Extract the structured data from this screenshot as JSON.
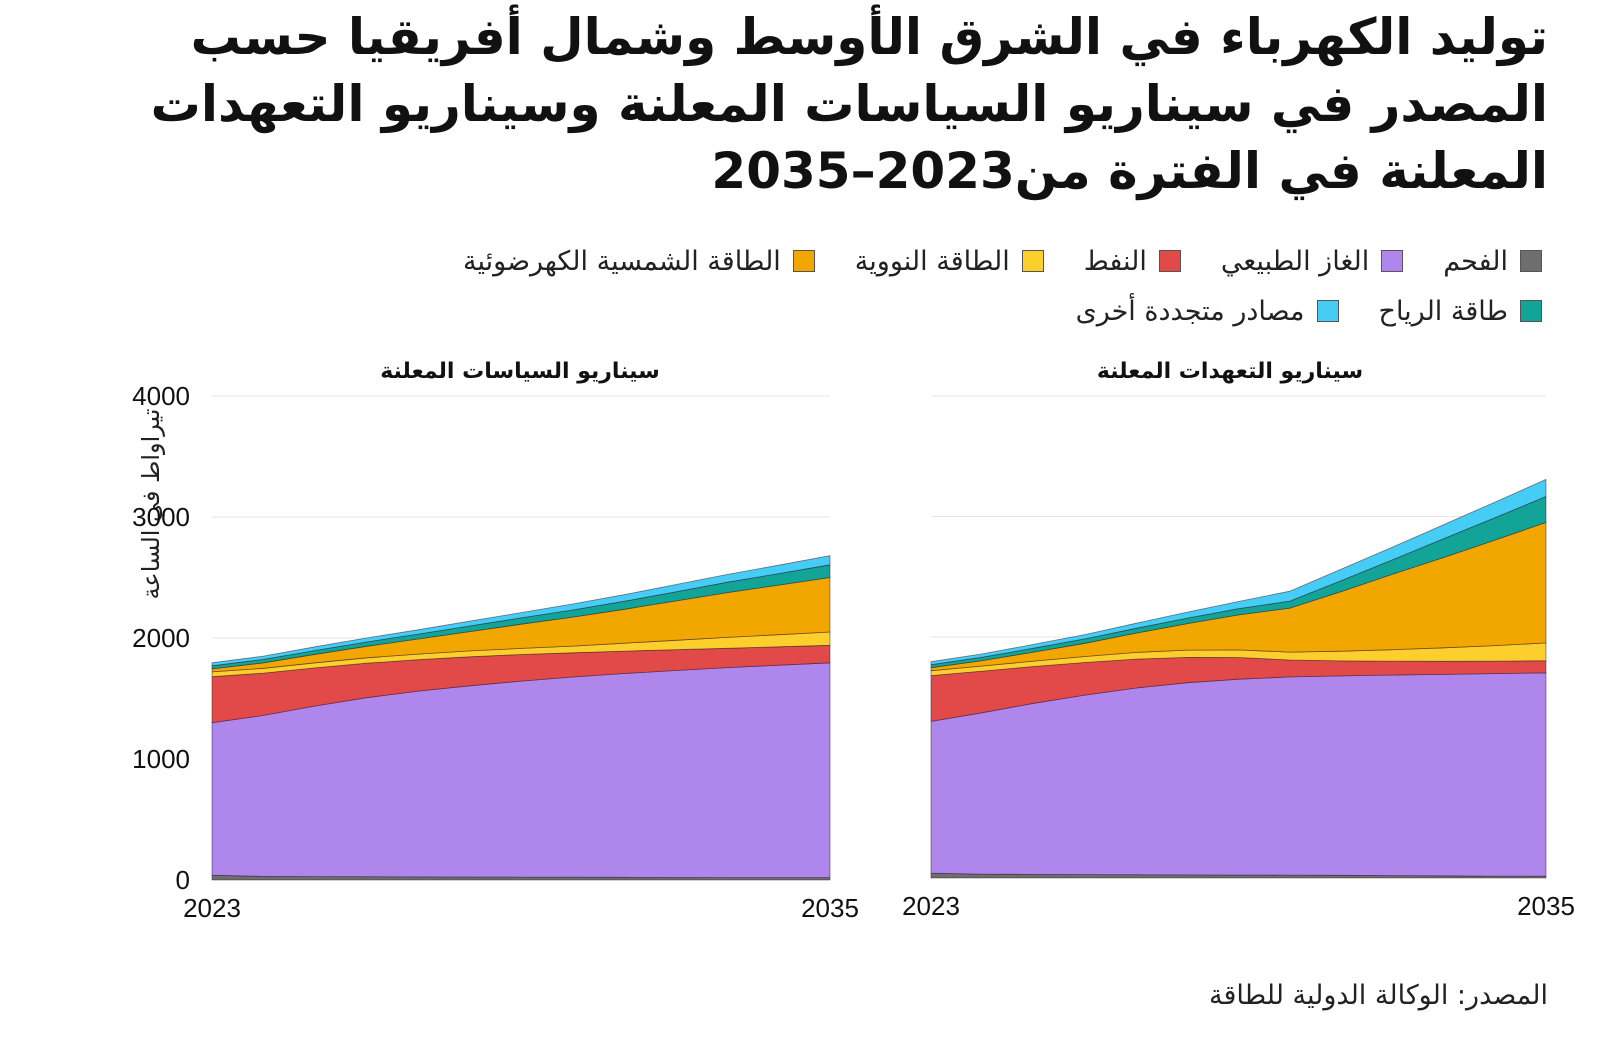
{
  "title": "توليد الكهرباء في الشرق الأوسط وشمال أفريقيا حسب المصدر في سيناريو السياسات المعلنة وسيناريو التعهدات المعلنة في الفترة من2023–2035",
  "legend": [
    {
      "key": "coal",
      "label": "الفحم",
      "color": "#6e6e6e"
    },
    {
      "key": "gas",
      "label": "الغاز الطبيعي",
      "color": "#ae86ec"
    },
    {
      "key": "oil",
      "label": "النفط",
      "color": "#e24a4a"
    },
    {
      "key": "nuclear",
      "label": "الطاقة النووية",
      "color": "#fccf2c"
    },
    {
      "key": "solar",
      "label": "الطاقة الشمسية الكهرضوئية",
      "color": "#f2a600"
    },
    {
      "key": "wind",
      "label": "طاقة الرياح",
      "color": "#12a597"
    },
    {
      "key": "other",
      "label": "مصادر متجددة أخرى",
      "color": "#45cdf5"
    }
  ],
  "source": "المصدر: الوكالة الدولية للطاقة",
  "chart_data": [
    {
      "type": "area",
      "stacked": true,
      "title": "سيناريو السياسات المعلنة",
      "ylabel": "تيراواط في الساعة",
      "xlabel": "",
      "x": [
        2023,
        2024,
        2025,
        2026,
        2027,
        2028,
        2029,
        2030,
        2031,
        2032,
        2033,
        2034,
        2035
      ],
      "xtick_labels": [
        "2023",
        "2035"
      ],
      "ylim": [
        0,
        4000
      ],
      "yticks": [
        0,
        1000,
        2000,
        3000,
        4000
      ],
      "ytick_labels": [
        "0",
        "1000",
        "2000",
        "3000",
        "4000"
      ],
      "grid": true,
      "legend_position": "top",
      "series": [
        {
          "name": "الفحم",
          "key": "coal",
          "values": [
            40,
            30,
            28,
            27,
            26,
            25,
            24,
            23,
            22,
            21,
            20,
            20,
            20
          ]
        },
        {
          "name": "الغاز الطبيعي",
          "key": "gas",
          "values": [
            1260,
            1330,
            1410,
            1480,
            1535,
            1580,
            1620,
            1655,
            1685,
            1710,
            1735,
            1755,
            1775
          ]
        },
        {
          "name": "النفط",
          "key": "oil",
          "values": [
            380,
            350,
            315,
            285,
            260,
            240,
            220,
            200,
            185,
            172,
            160,
            152,
            145
          ]
        },
        {
          "name": "الطاقة النووية",
          "key": "nuclear",
          "values": [
            40,
            40,
            42,
            44,
            46,
            48,
            50,
            55,
            65,
            78,
            90,
            100,
            110
          ]
        },
        {
          "name": "الطاقة الشمسية الكهرضوئية",
          "key": "solar",
          "values": [
            25,
            45,
            70,
            95,
            125,
            160,
            200,
            240,
            280,
            325,
            370,
            410,
            450
          ]
        },
        {
          "name": "طاقة الرياح",
          "key": "wind",
          "values": [
            25,
            28,
            32,
            36,
            40,
            46,
            52,
            58,
            66,
            75,
            85,
            95,
            105
          ]
        },
        {
          "name": "مصادر متجددة أخرى",
          "key": "other",
          "values": [
            25,
            27,
            30,
            33,
            36,
            40,
            44,
            50,
            55,
            60,
            65,
            70,
            75
          ]
        }
      ]
    },
    {
      "type": "area",
      "stacked": true,
      "title": "سيناريو التعهدات المعلنة",
      "ylabel": "",
      "xlabel": "",
      "x": [
        2023,
        2024,
        2025,
        2026,
        2027,
        2028,
        2029,
        2030,
        2031,
        2032,
        2033,
        2034,
        2035
      ],
      "xtick_labels": [
        "2023",
        "2035"
      ],
      "ylim": [
        0,
        4000
      ],
      "yticks": [
        0,
        1000,
        2000,
        3000,
        4000
      ],
      "grid": true,
      "series": [
        {
          "name": "الفحم",
          "key": "coal",
          "values": [
            40,
            32,
            30,
            28,
            27,
            26,
            25,
            24,
            22,
            20,
            18,
            16,
            15
          ]
        },
        {
          "name": "الغاز الطبيعي",
          "key": "gas",
          "values": [
            1260,
            1340,
            1420,
            1490,
            1550,
            1595,
            1625,
            1645,
            1655,
            1665,
            1672,
            1680,
            1688
          ]
        },
        {
          "name": "النفط",
          "key": "oil",
          "values": [
            380,
            345,
            305,
            270,
            240,
            210,
            180,
            140,
            125,
            115,
            108,
            103,
            100
          ]
        },
        {
          "name": "الطاقة النووية",
          "key": "nuclear",
          "values": [
            40,
            42,
            45,
            50,
            55,
            60,
            63,
            66,
            80,
            95,
            112,
            130,
            148
          ]
        },
        {
          "name": "الطاقة الشمسية الكهرضوئية",
          "key": "solar",
          "values": [
            25,
            45,
            75,
            110,
            160,
            220,
            290,
            365,
            495,
            625,
            750,
            875,
            1000
          ]
        },
        {
          "name": "طاقة الرياح",
          "key": "wind",
          "values": [
            25,
            28,
            32,
            36,
            40,
            46,
            52,
            58,
            90,
            120,
            155,
            185,
            215
          ]
        },
        {
          "name": "مصادر متجددة أخرى",
          "key": "other",
          "values": [
            25,
            28,
            32,
            36,
            42,
            50,
            60,
            82,
            95,
            105,
            117,
            130,
            142
          ]
        }
      ]
    }
  ]
}
